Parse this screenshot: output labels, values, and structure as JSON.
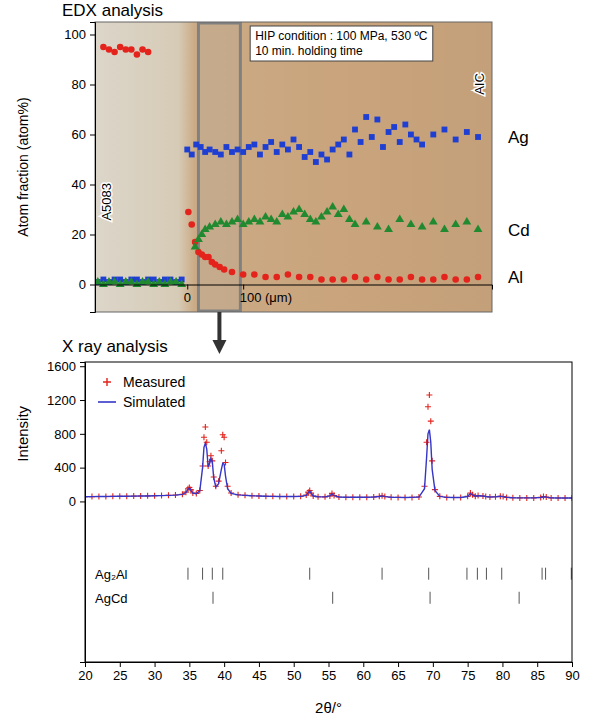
{
  "chart_data": [
    {
      "type": "scatter",
      "title": "EDX analysis",
      "ylabel": "Atom fraction (atom%)",
      "xlim": [
        -165,
        545
      ],
      "ylim": [
        -11,
        105
      ],
      "xticks": [
        0,
        {
          "value": 100,
          "label": "100 (μm)"
        }
      ],
      "yticks": [
        0,
        20,
        40,
        60,
        80,
        100
      ],
      "legend": "right",
      "annotation": [
        "HIP condition : 100 MPa, 530 ºC",
        "10 min. holding time"
      ],
      "region_labels": [
        "A5083",
        "AIC"
      ],
      "highlight_range": [
        20,
        95
      ],
      "series": [
        {
          "name": "Al",
          "color": "#e3231c",
          "marker": "circle",
          "x": [
            -150,
            -140,
            -130,
            -120,
            -110,
            -100,
            -90,
            -80,
            -70,
            2,
            8,
            14,
            20,
            26,
            32,
            38,
            44,
            50,
            58,
            66,
            80,
            100,
            120,
            140,
            160,
            180,
            200,
            220,
            240,
            260,
            280,
            300,
            320,
            340,
            360,
            380,
            400,
            420,
            440,
            460,
            480,
            500,
            520
          ],
          "values": [
            95,
            94,
            93,
            95,
            94,
            94,
            92,
            94,
            93,
            29,
            24,
            17,
            13,
            12,
            11,
            11,
            9,
            8,
            7,
            6,
            5,
            4,
            4,
            3,
            3,
            4,
            3,
            3,
            2,
            2,
            2,
            3,
            2,
            3,
            2,
            2,
            3,
            2,
            2,
            3,
            2,
            2,
            3
          ]
        },
        {
          "name": "Ag",
          "color": "#1f3fd2",
          "marker": "square",
          "x": [
            -160,
            -150,
            -140,
            -130,
            -120,
            -110,
            -100,
            -90,
            -80,
            -70,
            -60,
            -50,
            -40,
            -30,
            -20,
            -10,
            0,
            8,
            16,
            24,
            32,
            40,
            50,
            60,
            70,
            80,
            90,
            100,
            110,
            120,
            130,
            140,
            150,
            160,
            170,
            180,
            190,
            200,
            210,
            220,
            230,
            240,
            250,
            260,
            270,
            280,
            290,
            300,
            310,
            320,
            330,
            340,
            350,
            360,
            370,
            380,
            390,
            400,
            410,
            420,
            440,
            460,
            480,
            500,
            520
          ],
          "values": [
            1,
            2,
            1,
            2,
            2,
            1,
            2,
            2,
            1,
            2,
            2,
            1,
            2,
            2,
            1,
            2,
            54,
            52,
            56,
            55,
            53,
            54,
            53,
            52,
            55,
            53,
            54,
            53,
            55,
            56,
            52,
            55,
            57,
            53,
            56,
            54,
            58,
            55,
            51,
            53,
            49,
            52,
            50,
            54,
            56,
            58,
            52,
            62,
            57,
            67,
            59,
            66,
            55,
            61,
            63,
            57,
            64,
            60,
            58,
            56,
            60,
            62,
            58,
            61,
            59
          ]
        },
        {
          "name": "Cd",
          "color": "#218a30",
          "marker": "triangle",
          "x": [
            -160,
            -150,
            -140,
            -130,
            -120,
            -110,
            -100,
            -90,
            -80,
            -70,
            -60,
            -50,
            -40,
            -30,
            -20,
            -10,
            14,
            20,
            26,
            32,
            40,
            50,
            60,
            70,
            80,
            90,
            100,
            110,
            120,
            130,
            140,
            150,
            160,
            170,
            180,
            190,
            200,
            210,
            220,
            230,
            240,
            250,
            260,
            270,
            280,
            290,
            300,
            320,
            340,
            360,
            380,
            400,
            420,
            440,
            460,
            480,
            500,
            520
          ],
          "values": [
            1,
            0,
            1,
            1,
            0,
            1,
            1,
            0,
            1,
            1,
            0,
            1,
            0,
            1,
            1,
            0,
            15,
            18,
            20,
            22,
            23,
            24,
            25,
            24,
            25,
            26,
            24,
            25,
            26,
            25,
            27,
            26,
            25,
            28,
            27,
            29,
            30,
            28,
            26,
            25,
            27,
            29,
            31,
            28,
            30,
            26,
            24,
            25,
            23,
            22,
            26,
            24,
            23,
            25,
            22,
            24,
            25,
            22
          ]
        }
      ]
    },
    {
      "type": "line",
      "title": "X ray analysis",
      "xlabel": "2θ/°",
      "ylabel": "Intensity",
      "xlim": [
        20,
        90
      ],
      "ylim": [
        -1900,
        1650
      ],
      "xticks": [
        20,
        25,
        30,
        35,
        40,
        45,
        50,
        55,
        60,
        65,
        70,
        75,
        80,
        85,
        90
      ],
      "yticks": [
        0,
        400,
        800,
        1200,
        1600
      ],
      "legend": "upper left",
      "x": [
        20,
        21,
        22,
        23,
        24,
        25,
        26,
        27,
        28,
        29,
        30,
        31,
        32,
        33,
        34,
        34.5,
        34.8,
        35,
        35.2,
        35.5,
        36,
        36.5,
        36.9,
        37.1,
        37.3,
        37.5,
        37.7,
        37.9,
        38.1,
        38.3,
        38.5,
        38.8,
        39.2,
        39.6,
        39.8,
        40,
        40.2,
        40.5,
        41,
        42,
        43,
        44,
        45,
        46,
        47,
        48,
        49,
        50,
        51,
        51.8,
        52.1,
        52.3,
        52.5,
        52.8,
        53.5,
        54.5,
        55.2,
        55.5,
        55.8,
        56.5,
        57.5,
        58.5,
        59.5,
        60.5,
        61.5,
        62.3,
        62.7,
        63.1,
        64,
        65,
        66,
        67,
        68,
        68.8,
        69.1,
        69.3,
        69.5,
        69.7,
        69.9,
        70.3,
        71,
        72,
        73,
        74,
        75,
        75.4,
        75.7,
        76.1,
        76.5,
        77.2,
        77.6,
        78.2,
        79,
        79.7,
        80.1,
        80.6,
        81.5,
        82.5,
        83.5,
        84.5,
        85.5,
        85.9,
        86.3,
        87,
        88,
        89,
        90
      ],
      "series": [
        {
          "name": "Measured",
          "color": "#e3231c",
          "type": "scatter",
          "marker": "plus",
          "values": [
            55,
            57,
            58,
            58,
            60,
            61,
            62,
            63,
            64,
            66,
            67,
            70,
            72,
            76,
            85,
            110,
            150,
            165,
            140,
            100,
            95,
            130,
            420,
            760,
            880,
            700,
            420,
            470,
            540,
            480,
            290,
            180,
            240,
            600,
            790,
            760,
            460,
            180,
            100,
            80,
            72,
            68,
            64,
            62,
            60,
            59,
            58,
            58,
            60,
            75,
            110,
            130,
            100,
            65,
            55,
            54,
            65,
            95,
            70,
            52,
            50,
            50,
            49,
            50,
            52,
            60,
            68,
            58,
            50,
            48,
            47,
            48,
            52,
            180,
            700,
            1120,
            1260,
            950,
            480,
            140,
            60,
            48,
            46,
            47,
            60,
            100,
            80,
            62,
            70,
            65,
            58,
            52,
            55,
            62,
            58,
            48,
            44,
            42,
            42,
            42,
            48,
            58,
            52,
            42,
            40,
            40,
            40
          ]
        },
        {
          "name": "Simulated",
          "color": "#3535c8",
          "type": "line",
          "line_style": "solid",
          "values": [
            56,
            57,
            58,
            59,
            60,
            61,
            62,
            63,
            64,
            65,
            67,
            69,
            72,
            75,
            84,
            105,
            145,
            160,
            135,
            98,
            92,
            125,
            400,
            640,
            690,
            620,
            410,
            450,
            510,
            470,
            280,
            170,
            210,
            380,
            450,
            440,
            300,
            150,
            95,
            78,
            72,
            67,
            64,
            62,
            60,
            59,
            58,
            58,
            60,
            72,
            105,
            125,
            98,
            64,
            55,
            54,
            66,
            92,
            68,
            52,
            50,
            49,
            49,
            50,
            52,
            58,
            65,
            57,
            50,
            48,
            47,
            48,
            52,
            150,
            520,
            800,
            850,
            700,
            380,
            130,
            60,
            48,
            46,
            47,
            58,
            95,
            78,
            62,
            68,
            64,
            58,
            52,
            54,
            62,
            57,
            48,
            44,
            42,
            42,
            42,
            47,
            56,
            51,
            42,
            40,
            40,
            40
          ]
        }
      ],
      "phase_ticks": [
        {
          "name": "Ag₂Al",
          "positions": [
            34.8,
            36.9,
            38.3,
            39.8,
            52.3,
            62.7,
            69.4,
            74.9,
            76.4,
            77.7,
            79.9,
            85.7,
            86.2,
            89.9
          ]
        },
        {
          "name": "AgCd",
          "positions": [
            38.4,
            55.6,
            69.6,
            82.4
          ]
        }
      ]
    }
  ]
}
